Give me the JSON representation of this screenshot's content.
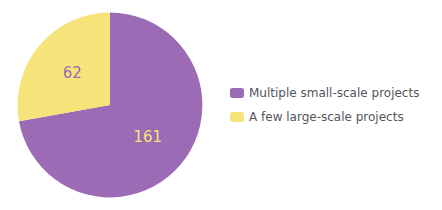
{
  "chart_data": {
    "type": "pie",
    "categories": [
      "Multiple small-scale projects",
      "A few large-scale projects"
    ],
    "values": [
      161,
      62
    ],
    "colors": [
      "#9b6bb5",
      "#f5e47a"
    ],
    "data_labels": true,
    "legend": "right"
  }
}
